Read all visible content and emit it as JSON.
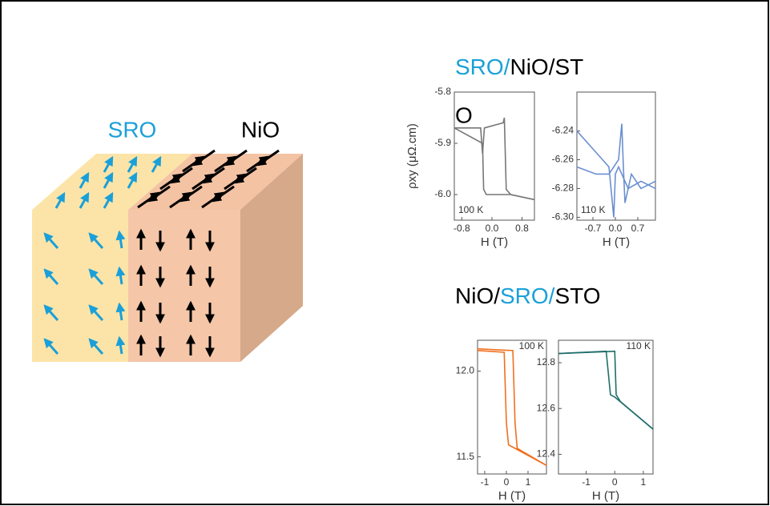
{
  "diagram": {
    "left_label": "SRO",
    "right_label": "NiO"
  },
  "title_top": [
    "SRO/",
    "NiO/ST",
    "O"
  ],
  "title_bottom": [
    "NiO/",
    "SRO/",
    "STO"
  ],
  "chart_data": [
    {
      "type": "line",
      "ylabel": "ρxy (μΩ.cm)",
      "xlabel": "H (T)",
      "annotation": "100 K",
      "xlim": [
        -1.0,
        1.13
      ],
      "ylim": [
        -6.05,
        -5.8
      ],
      "xticks": [
        -0.8,
        {
          "value": 0,
          "label": "0.0"
        },
        0.8
      ],
      "yticks": [
        -5.8,
        -5.9,
        {
          "value": -6,
          "label": "-6.0"
        }
      ],
      "series": [
        {
          "color": "#777777",
          "x": [
            -1.0,
            -0.3,
            -0.25,
            -0.2,
            0.3,
            0.33,
            0.38,
            0.5,
            1.13
          ],
          "values": [
            -5.87,
            -5.87,
            -5.92,
            -5.87,
            -5.86,
            -5.85,
            -5.99,
            -6.0,
            -6.01
          ]
        },
        {
          "color": "#777777",
          "x": [
            1.13,
            0.5,
            -0.15,
            -0.22,
            -0.25,
            -1.0
          ],
          "values": [
            -6.01,
            -6.0,
            -6.0,
            -5.99,
            -5.9,
            -5.87
          ]
        }
      ]
    },
    {
      "type": "line",
      "xlabel": "H (T)",
      "annotation": "110 K",
      "xlim": [
        -1.2,
        1.25
      ],
      "ylim": [
        -6.302,
        -6.213
      ],
      "xticks": [
        -0.7,
        {
          "value": 0,
          "label": "0.0"
        },
        0.7
      ],
      "yticks": [
        -6.24,
        -6.26,
        -6.28,
        {
          "value": -6.3,
          "label": "-6.30"
        }
      ],
      "series": [
        {
          "color": "#6a8fd0",
          "x": [
            -1.2,
            -0.8,
            -0.4,
            -0.2,
            -0.05,
            0.0,
            0.1,
            0.2,
            0.4,
            0.8,
            1.25
          ],
          "values": [
            -6.24,
            -6.25,
            -6.26,
            -6.265,
            -6.3,
            -6.27,
            -6.265,
            -6.27,
            -6.28,
            -6.275,
            -6.28
          ]
        },
        {
          "color": "#6a8fd0",
          "x": [
            1.25,
            0.8,
            0.5,
            0.3,
            0.25,
            0.2,
            0.1,
            -0.2,
            -0.6,
            -1.2
          ],
          "values": [
            -6.275,
            -6.28,
            -6.27,
            -6.29,
            -6.265,
            -6.235,
            -6.26,
            -6.27,
            -6.27,
            -6.265
          ]
        }
      ]
    },
    {
      "type": "line",
      "xlabel": "H (T)",
      "annotation": "100 K",
      "xlim": [
        -1.33,
        1.85
      ],
      "ylim": [
        11.4,
        12.18
      ],
      "xticks": [
        -1,
        0,
        1
      ],
      "yticks": [
        {
          "value": 12,
          "label": "12.0"
        },
        11.5
      ],
      "series": [
        {
          "color": "#f07020",
          "x": [
            -1.33,
            -0.1,
            0.0,
            0.1,
            1.85
          ],
          "values": [
            12.12,
            12.11,
            11.7,
            11.57,
            11.45
          ]
        },
        {
          "color": "#f07020",
          "x": [
            -1.33,
            0.3,
            0.4,
            0.5,
            1.85
          ],
          "values": [
            12.13,
            12.12,
            11.7,
            11.55,
            11.45
          ]
        }
      ]
    },
    {
      "type": "line",
      "xlabel": "H (T)",
      "annotation": "110 K",
      "xlim": [
        -1.97,
        1.34
      ],
      "ylim": [
        12.314,
        12.898
      ],
      "xticks": [
        -1,
        0,
        1
      ],
      "yticks": [
        12.8,
        12.6,
        12.4
      ],
      "series": [
        {
          "color": "#1f6e6a",
          "x": [
            -1.97,
            -0.3,
            -0.15,
            0.0,
            1.34
          ],
          "values": [
            12.84,
            12.85,
            12.66,
            12.65,
            12.51
          ]
        },
        {
          "color": "#1f6e6a",
          "x": [
            -1.97,
            0.0,
            0.05,
            0.2,
            1.34
          ],
          "values": [
            12.84,
            12.85,
            12.66,
            12.63,
            12.51
          ]
        }
      ]
    }
  ]
}
